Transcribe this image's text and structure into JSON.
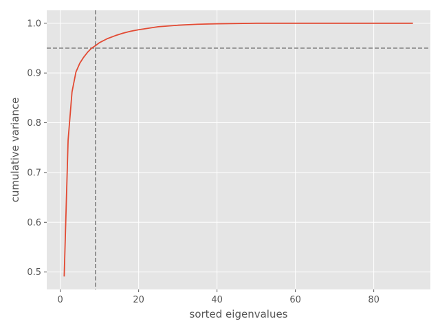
{
  "chart_data": {
    "type": "line",
    "title": "",
    "xlabel": "sorted eigenvalues",
    "ylabel": "cumulative variance",
    "xlim": [
      -3.45,
      94.45
    ],
    "ylim": [
      0.465,
      1.026
    ],
    "x_ticks": [
      0,
      20,
      40,
      60,
      80
    ],
    "y_ticks": [
      0.5,
      0.6,
      0.7,
      0.8,
      0.9,
      1.0
    ],
    "x_tick_labels": [
      "0",
      "20",
      "40",
      "60",
      "80"
    ],
    "y_tick_labels": [
      "0.5",
      "0.6",
      "0.7",
      "0.8",
      "0.9",
      "1.0"
    ],
    "grid": true,
    "reference_lines": [
      {
        "orientation": "horizontal",
        "value": 0.95,
        "style": "dashed",
        "color": "#808080"
      },
      {
        "orientation": "vertical",
        "value": 9,
        "style": "dashed",
        "color": "#808080"
      }
    ],
    "series": [
      {
        "color": "#e24a33",
        "x": [
          1,
          2,
          3,
          4,
          5,
          6,
          7,
          8,
          9,
          10,
          12,
          14,
          16,
          18,
          20,
          25,
          30,
          35,
          40,
          50,
          60,
          70,
          80,
          90
        ],
        "y": [
          0.491,
          0.765,
          0.862,
          0.902,
          0.92,
          0.932,
          0.942,
          0.95,
          0.955,
          0.961,
          0.969,
          0.975,
          0.98,
          0.984,
          0.987,
          0.993,
          0.996,
          0.998,
          0.999,
          1.0,
          1.0,
          1.0,
          1.0,
          1.0
        ]
      }
    ]
  },
  "colors": {
    "plot_background": "#e5e5e5",
    "grid": "#ffffff",
    "series": "#e24a33",
    "reference": "#808080"
  }
}
